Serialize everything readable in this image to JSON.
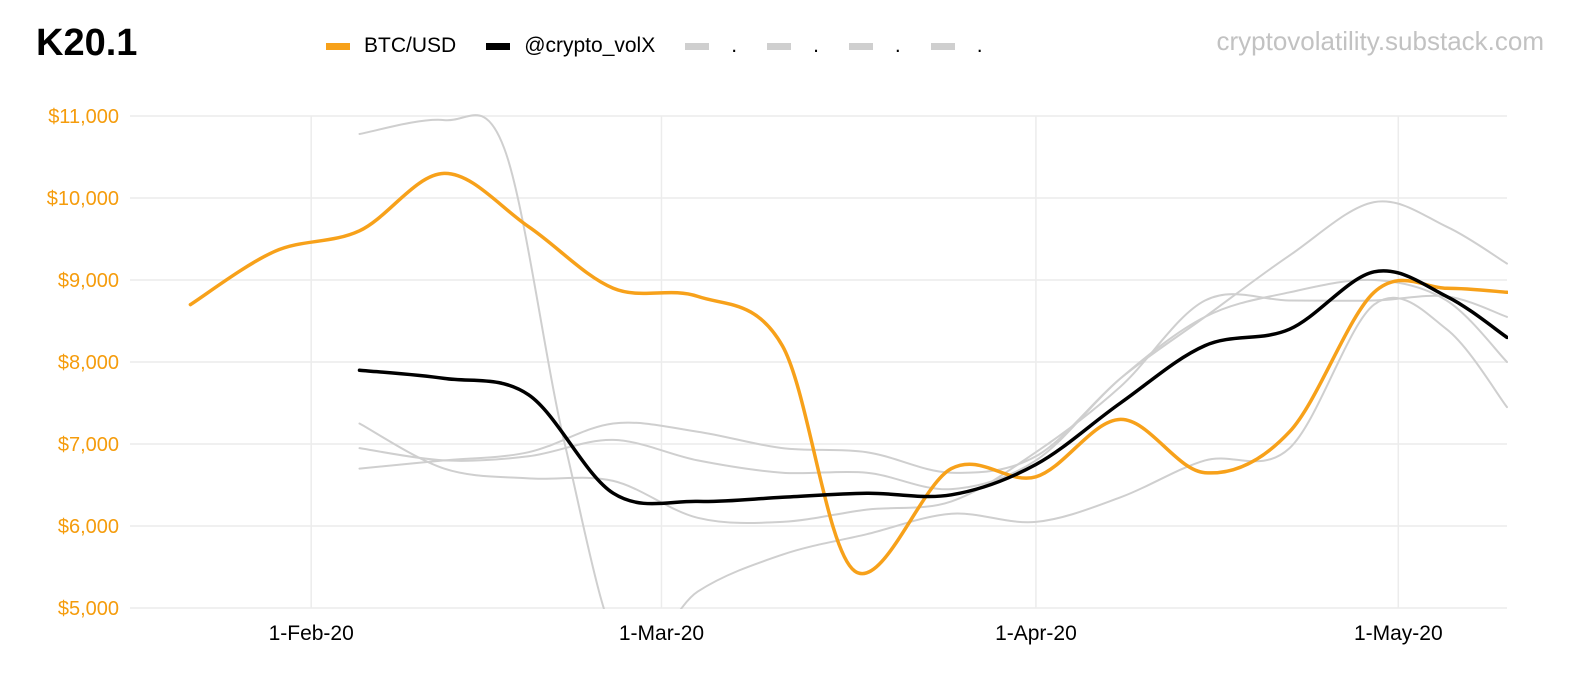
{
  "title": "K20.1",
  "watermark": "cryptovolatility.substack.com",
  "colors": {
    "btc": "#f7a11a",
    "volx": "#000000",
    "ghost": "#cfcfcf",
    "grid": "#ececec",
    "yaxis": "#f59c0c"
  },
  "legend": [
    {
      "label": "BTC/USD",
      "color": "#f7a11a"
    },
    {
      "label": "@crypto_volX",
      "color": "#000000"
    },
    {
      "label": ".",
      "color": "#cfcfcf"
    },
    {
      "label": ".",
      "color": "#cfcfcf"
    },
    {
      "label": ".",
      "color": "#cfcfcf"
    },
    {
      "label": ".",
      "color": "#cfcfcf"
    }
  ],
  "chart_data": {
    "type": "line",
    "title": "K20.1",
    "x_axis": {
      "type": "date",
      "range": [
        "2020-01-17",
        "2020-05-10"
      ],
      "ticks": [
        {
          "date": "2020-02-01",
          "label": "1-Feb-20"
        },
        {
          "date": "2020-03-01",
          "label": "1-Mar-20"
        },
        {
          "date": "2020-04-01",
          "label": "1-Apr-20"
        },
        {
          "date": "2020-05-01",
          "label": "1-May-20"
        }
      ]
    },
    "y_axis": {
      "range": [
        5000,
        11000
      ],
      "ticks": [
        {
          "value": 5000,
          "label": "$5,000"
        },
        {
          "value": 6000,
          "label": "$6,000"
        },
        {
          "value": 7000,
          "label": "$7,000"
        },
        {
          "value": 8000,
          "label": "$8,000"
        },
        {
          "value": 9000,
          "label": "$9,000"
        },
        {
          "value": 10000,
          "label": "$10,000"
        },
        {
          "value": 11000,
          "label": "$11,000"
        }
      ],
      "grid": true
    },
    "series": [
      {
        "name": "BTC/USD",
        "role": "btc",
        "points": [
          [
            "2020-01-22",
            8700
          ],
          [
            "2020-01-29",
            9350
          ],
          [
            "2020-02-05",
            9600
          ],
          [
            "2020-02-12",
            10300
          ],
          [
            "2020-02-19",
            9650
          ],
          [
            "2020-02-26",
            8900
          ],
          [
            "2020-03-04",
            8800
          ],
          [
            "2020-03-11",
            8200
          ],
          [
            "2020-03-17",
            5450
          ],
          [
            "2020-03-25",
            6700
          ],
          [
            "2020-04-01",
            6600
          ],
          [
            "2020-04-08",
            7300
          ],
          [
            "2020-04-15",
            6650
          ],
          [
            "2020-04-22",
            7150
          ],
          [
            "2020-04-29",
            8850
          ],
          [
            "2020-05-05",
            8900
          ],
          [
            "2020-05-10",
            8850
          ]
        ]
      },
      {
        "name": "@crypto_volX",
        "role": "volx",
        "points": [
          [
            "2020-02-05",
            7900
          ],
          [
            "2020-02-12",
            7800
          ],
          [
            "2020-02-19",
            7600
          ],
          [
            "2020-02-26",
            6400
          ],
          [
            "2020-03-04",
            6300
          ],
          [
            "2020-03-11",
            6350
          ],
          [
            "2020-03-18",
            6400
          ],
          [
            "2020-03-25",
            6380
          ],
          [
            "2020-04-01",
            6750
          ],
          [
            "2020-04-08",
            7500
          ],
          [
            "2020-04-15",
            8200
          ],
          [
            "2020-04-22",
            8400
          ],
          [
            "2020-04-29",
            9100
          ],
          [
            "2020-05-05",
            8800
          ],
          [
            "2020-05-10",
            8300
          ]
        ]
      },
      {
        "name": ".",
        "role": "ghost",
        "points": [
          [
            "2020-02-05",
            10780
          ],
          [
            "2020-02-12",
            10950
          ],
          [
            "2020-02-17",
            10600
          ],
          [
            "2020-02-22",
            7000
          ],
          [
            "2020-02-27",
            4400
          ],
          [
            "2020-03-04",
            5200
          ],
          [
            "2020-03-11",
            5650
          ],
          [
            "2020-03-18",
            5900
          ],
          [
            "2020-03-25",
            6150
          ],
          [
            "2020-04-01",
            6050
          ],
          [
            "2020-04-08",
            6350
          ],
          [
            "2020-04-15",
            6800
          ],
          [
            "2020-04-22",
            6950
          ],
          [
            "2020-04-29",
            8700
          ],
          [
            "2020-05-05",
            8400
          ],
          [
            "2020-05-10",
            7450
          ]
        ]
      },
      {
        "name": ".",
        "role": "ghost",
        "points": [
          [
            "2020-02-05",
            7250
          ],
          [
            "2020-02-12",
            6700
          ],
          [
            "2020-02-19",
            6580
          ],
          [
            "2020-02-26",
            6550
          ],
          [
            "2020-03-04",
            6100
          ],
          [
            "2020-03-11",
            6050
          ],
          [
            "2020-03-18",
            6200
          ],
          [
            "2020-03-25",
            6300
          ],
          [
            "2020-04-01",
            6900
          ],
          [
            "2020-04-08",
            7700
          ],
          [
            "2020-04-15",
            8750
          ],
          [
            "2020-04-22",
            8750
          ],
          [
            "2020-04-29",
            8750
          ],
          [
            "2020-05-05",
            8800
          ],
          [
            "2020-05-10",
            8550
          ]
        ]
      },
      {
        "name": ".",
        "role": "ghost",
        "points": [
          [
            "2020-02-05",
            6700
          ],
          [
            "2020-02-12",
            6800
          ],
          [
            "2020-02-19",
            6900
          ],
          [
            "2020-02-26",
            7250
          ],
          [
            "2020-03-04",
            7150
          ],
          [
            "2020-03-11",
            6950
          ],
          [
            "2020-03-18",
            6900
          ],
          [
            "2020-03-25",
            6650
          ],
          [
            "2020-04-01",
            6850
          ],
          [
            "2020-04-08",
            7800
          ],
          [
            "2020-04-15",
            8550
          ],
          [
            "2020-04-22",
            9300
          ],
          [
            "2020-04-29",
            9950
          ],
          [
            "2020-05-05",
            9650
          ],
          [
            "2020-05-10",
            9200
          ]
        ]
      },
      {
        "name": ".",
        "role": "ghost",
        "points": [
          [
            "2020-02-05",
            6950
          ],
          [
            "2020-02-12",
            6800
          ],
          [
            "2020-02-19",
            6850
          ],
          [
            "2020-02-26",
            7050
          ],
          [
            "2020-03-04",
            6800
          ],
          [
            "2020-03-11",
            6650
          ],
          [
            "2020-03-18",
            6650
          ],
          [
            "2020-03-25",
            6450
          ],
          [
            "2020-04-01",
            6800
          ],
          [
            "2020-04-08",
            7800
          ],
          [
            "2020-04-15",
            8550
          ],
          [
            "2020-04-22",
            8850
          ],
          [
            "2020-04-29",
            9000
          ],
          [
            "2020-05-05",
            8750
          ],
          [
            "2020-05-10",
            8000
          ]
        ]
      }
    ]
  }
}
